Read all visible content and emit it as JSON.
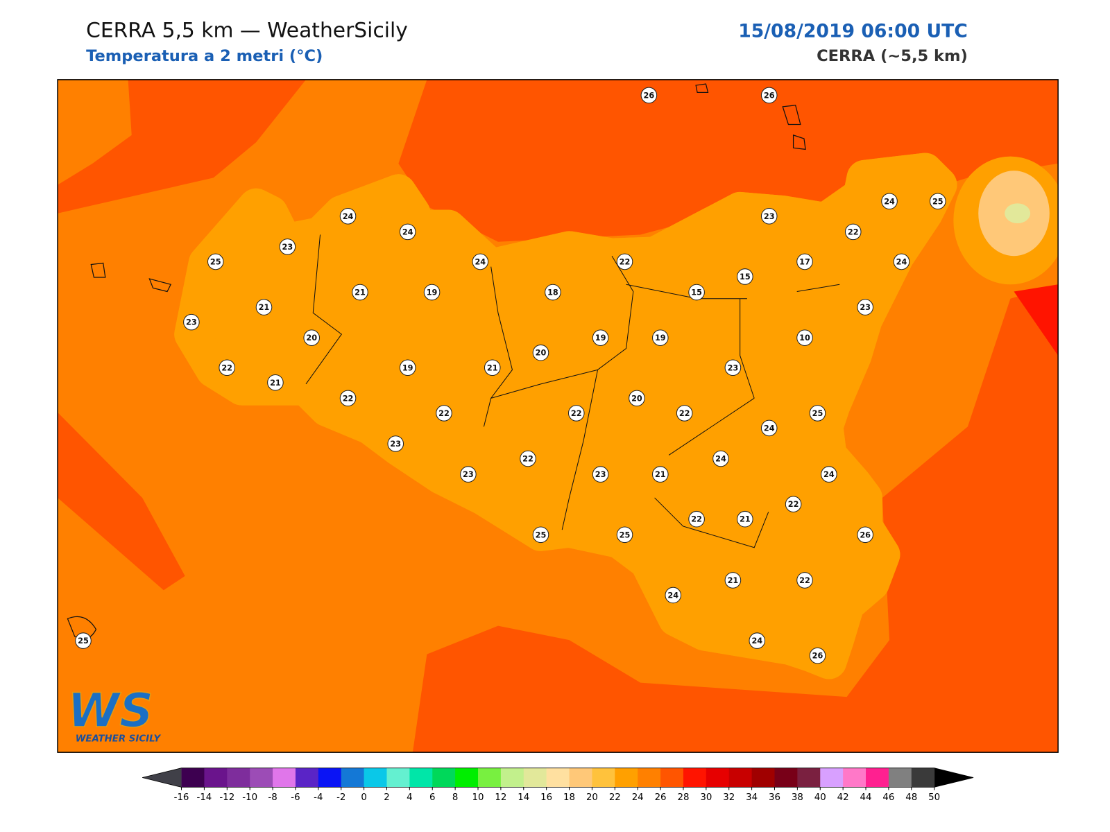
{
  "header": {
    "title": "CERRA 5,5 km — WeatherSicily",
    "subtitle": "Temperatura a 2 metri (°C)",
    "datetime": "15/08/2019 06:00 UTC",
    "source": "CERRA (~5,5 km)"
  },
  "map": {
    "stations": [
      26,
      26,
      24,
      24,
      23,
      25,
      24,
      22,
      23,
      22,
      24,
      25,
      17,
      24,
      15,
      15,
      21,
      19,
      18,
      21,
      23,
      20,
      19,
      19,
      10,
      23,
      20,
      22,
      19,
      21,
      23,
      21,
      22,
      20,
      22,
      22,
      22,
      25,
      24,
      23,
      24,
      22,
      23,
      23,
      21,
      24,
      22,
      22,
      21,
      25,
      25,
      26,
      24,
      21,
      22,
      24,
      26,
      25
    ]
  },
  "colorbar": {
    "ticks": [
      -16,
      -14,
      -12,
      -10,
      -8,
      -6,
      -4,
      -2,
      0,
      2,
      4,
      6,
      8,
      10,
      12,
      14,
      16,
      18,
      20,
      22,
      24,
      26,
      28,
      30,
      32,
      34,
      36,
      38,
      40,
      42,
      44,
      46,
      48,
      50
    ],
    "colors": [
      "#3d0050",
      "#6a148c",
      "#7e2d9c",
      "#9c4cb6",
      "#e076ea",
      "#5a24c6",
      "#0a14f5",
      "#1478d6",
      "#0ac8e8",
      "#64f0d0",
      "#00e6a8",
      "#00d85a",
      "#00ee00",
      "#78f040",
      "#c2f08c",
      "#e2e89a",
      "#ffe0a0",
      "#ffc878",
      "#ffc23c",
      "#ffa000",
      "#ff8000",
      "#ff5500",
      "#ff1400",
      "#e60000",
      "#c80000",
      "#a00000",
      "#780018",
      "#7a2040",
      "#d8a0ff",
      "#ff78c8",
      "#ff2090",
      "#808080",
      "#3a3a3a"
    ],
    "under_color": "#404048",
    "over_color": "#000000"
  },
  "logo": {
    "mark": "WS",
    "text": "WEATHER SICILY"
  }
}
